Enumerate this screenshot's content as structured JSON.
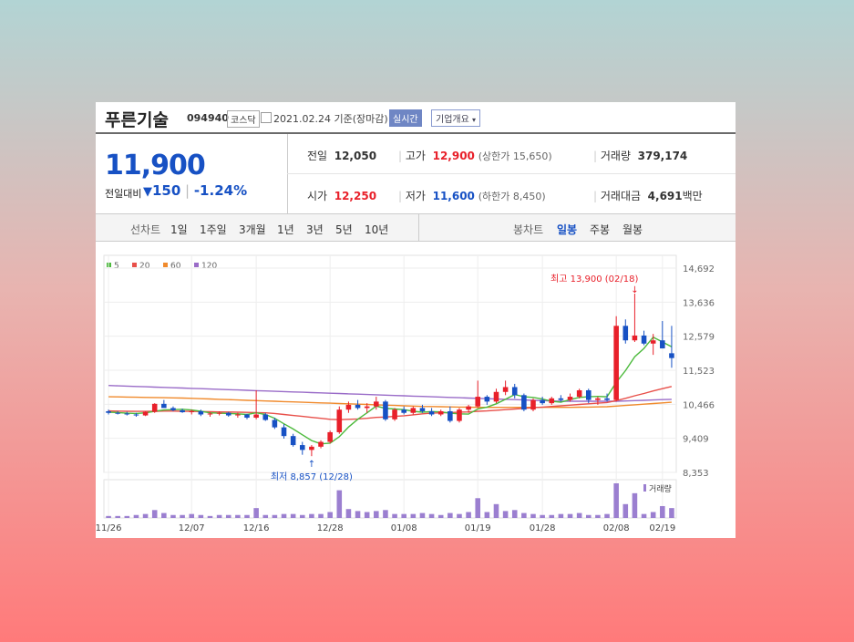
{
  "stock": {
    "name": "푸른기술",
    "code": "094940",
    "market": "코스닥",
    "date": "2021.02.24 기준(장마감)",
    "realtime_label": "실시간",
    "company_info_label": "기업개요",
    "current_price": "11,900",
    "change_label": "전일대비",
    "change_value": "150",
    "change_percent": "-1.24%"
  },
  "summary": {
    "prev_label": "전일",
    "prev_value": "12,050",
    "high_label": "고가",
    "high_value": "12,900",
    "upper_limit": "(상한가 15,650)",
    "volume_label": "거래량",
    "volume_value": "379,174",
    "open_label": "시가",
    "open_value": "12,250",
    "low_label": "저가",
    "low_value": "11,600",
    "lower_limit": "(하한가 8,450)",
    "amount_label": "거래대금",
    "amount_value": "4,691",
    "amount_unit": "백만"
  },
  "toolbar": {
    "line_chart_label": "선차트",
    "periods": [
      "1일",
      "1주일",
      "3개월",
      "1년",
      "3년",
      "5년",
      "10년"
    ],
    "candle_label": "봉차트",
    "candle_periods": [
      "일봉",
      "주봉",
      "월봉"
    ],
    "selected_candle": "일봉"
  },
  "colors": {
    "up": "#e8202a",
    "down": "#1751c4",
    "ma5": "#4cba3c",
    "ma20": "#e8504a",
    "ma60": "#f08a2c",
    "ma120": "#9a6cc8",
    "volume": "#9b7fd0"
  },
  "chart_data": {
    "type": "candlestick",
    "legend": [
      "5",
      "20",
      "60",
      "120"
    ],
    "y_ticks": [
      "14,692",
      "13,636",
      "12,579",
      "11,523",
      "10,466",
      "9,409",
      "8,353"
    ],
    "ylim": [
      8353,
      14692
    ],
    "x_ticks": [
      "11/26",
      "12/07",
      "12/16",
      "12/28",
      "01/08",
      "01/19",
      "01/28",
      "02/08",
      "02/19"
    ],
    "max_annotation": "최고 13,900 (02/18)",
    "min_annotation": "최저 8,857 (12/28)",
    "volume_label": "거래량",
    "candles": [
      [
        10250,
        10300,
        10150,
        10200
      ],
      [
        10200,
        10250,
        10150,
        10180
      ],
      [
        10180,
        10230,
        10120,
        10150
      ],
      [
        10150,
        10200,
        10080,
        10120
      ],
      [
        10120,
        10250,
        10100,
        10230
      ],
      [
        10230,
        10500,
        10200,
        10480
      ],
      [
        10480,
        10600,
        10400,
        10350
      ],
      [
        10350,
        10400,
        10250,
        10280
      ],
      [
        10280,
        10330,
        10200,
        10220
      ],
      [
        10220,
        10300,
        10150,
        10250
      ],
      [
        10250,
        10300,
        10100,
        10150
      ],
      [
        10150,
        10220,
        10080,
        10180
      ],
      [
        10180,
        10250,
        10120,
        10200
      ],
      [
        10200,
        10230,
        10080,
        10120
      ],
      [
        10120,
        10200,
        10050,
        10150
      ],
      [
        10150,
        10170,
        10000,
        10050
      ],
      [
        10050,
        10900,
        10000,
        10150
      ],
      [
        10150,
        10200,
        9950,
        9980
      ],
      [
        9980,
        10050,
        9700,
        9750
      ],
      [
        9750,
        9850,
        9400,
        9480
      ],
      [
        9480,
        9550,
        9150,
        9200
      ],
      [
        9200,
        9300,
        8900,
        9050
      ],
      [
        9050,
        9200,
        8857,
        9150
      ],
      [
        9150,
        9350,
        9100,
        9300
      ],
      [
        9300,
        9650,
        9250,
        9600
      ],
      [
        9600,
        10400,
        9550,
        10300
      ],
      [
        10300,
        10550,
        10200,
        10450
      ],
      [
        10450,
        10600,
        10300,
        10350
      ],
      [
        10350,
        10500,
        10200,
        10400
      ],
      [
        10400,
        10700,
        10300,
        10550
      ],
      [
        10550,
        10600,
        9950,
        10000
      ],
      [
        10000,
        10350,
        9950,
        10300
      ],
      [
        10300,
        10400,
        10150,
        10200
      ],
      [
        10200,
        10400,
        10150,
        10350
      ],
      [
        10350,
        10450,
        10200,
        10250
      ],
      [
        10250,
        10350,
        10100,
        10150
      ],
      [
        10150,
        10300,
        10100,
        10250
      ],
      [
        10250,
        10400,
        9900,
        9950
      ],
      [
        9950,
        10350,
        9900,
        10300
      ],
      [
        10300,
        10450,
        10200,
        10400
      ],
      [
        10400,
        11200,
        10350,
        10700
      ],
      [
        10700,
        10750,
        10450,
        10550
      ],
      [
        10550,
        10950,
        10500,
        10850
      ],
      [
        10850,
        11200,
        10750,
        11000
      ],
      [
        11000,
        11100,
        10650,
        10750
      ],
      [
        10750,
        10800,
        10250,
        10300
      ],
      [
        10300,
        10650,
        10250,
        10600
      ],
      [
        10600,
        10700,
        10450,
        10500
      ],
      [
        10500,
        10700,
        10450,
        10650
      ],
      [
        10650,
        10750,
        10550,
        10600
      ],
      [
        10600,
        10800,
        10550,
        10700
      ],
      [
        10700,
        10950,
        10650,
        10900
      ],
      [
        10900,
        10950,
        10500,
        10600
      ],
      [
        10600,
        10700,
        10450,
        10650
      ],
      [
        10650,
        10800,
        10550,
        10600
      ],
      [
        10600,
        13200,
        10550,
        12900
      ],
      [
        12900,
        13100,
        12350,
        12450
      ],
      [
        12450,
        13900,
        12400,
        12600
      ],
      [
        12600,
        12750,
        12300,
        12350
      ],
      [
        12350,
        12650,
        12000,
        12450
      ],
      [
        12450,
        13050,
        12200,
        12200
      ],
      [
        12050,
        12900,
        11600,
        11900
      ]
    ],
    "volumes": [
      2,
      2,
      2,
      3,
      4,
      8,
      5,
      3,
      3,
      4,
      3,
      2,
      3,
      3,
      3,
      3,
      10,
      3,
      3,
      4,
      4,
      3,
      4,
      4,
      6,
      28,
      9,
      7,
      6,
      7,
      8,
      4,
      4,
      4,
      5,
      4,
      3,
      5,
      4,
      6,
      20,
      6,
      14,
      7,
      8,
      5,
      4,
      3,
      3,
      4,
      4,
      5,
      3,
      3,
      4,
      35,
      14,
      25,
      4,
      6,
      12,
      10
    ],
    "ma5": [
      10220,
      10210,
      10190,
      10180,
      10200,
      10250,
      10290,
      10300,
      10310,
      10290,
      10250,
      10200,
      10190,
      10180,
      10170,
      10150,
      10200,
      10150,
      10030,
      9860,
      9700,
      9520,
      9340,
      9240,
      9260,
      9460,
      9760,
      10000,
      10200,
      10410,
      10340,
      10320,
      10300,
      10250,
      10220,
      10240,
      10230,
      10190,
      10170,
      10160,
      10320,
      10380,
      10480,
      10620,
      10770,
      10700,
      10680,
      10630,
      10560,
      10530,
      10610,
      10680,
      10700,
      10710,
      10700,
      11150,
      11510,
      11940,
      12200,
      12550,
      12400,
      12250
    ],
    "ma20": [
      10260,
      10255,
      10250,
      10245,
      10245,
      10250,
      10255,
      10255,
      10250,
      10245,
      10240,
      10235,
      10230,
      10225,
      10220,
      10215,
      10210,
      10200,
      10180,
      10150,
      10120,
      10090,
      10060,
      10030,
      10000,
      9990,
      10000,
      10010,
      10030,
      10060,
      10070,
      10090,
      10110,
      10140,
      10170,
      10190,
      10200,
      10210,
      10220,
      10230,
      10250,
      10260,
      10280,
      10300,
      10320,
      10340,
      10360,
      10380,
      10400,
      10420,
      10440,
      10460,
      10480,
      10500,
      10520,
      10580,
      10650,
      10730,
      10800,
      10880,
      10950,
      11020
    ],
    "ma60": [
      10700,
      10695,
      10690,
      10685,
      10680,
      10675,
      10670,
      10665,
      10660,
      10650,
      10640,
      10630,
      10620,
      10610,
      10600,
      10590,
      10580,
      10570,
      10560,
      10550,
      10540,
      10530,
      10520,
      10510,
      10500,
      10490,
      10480,
      10470,
      10460,
      10450,
      10440,
      10430,
      10420,
      10410,
      10400,
      10395,
      10390,
      10385,
      10380,
      10375,
      10370,
      10370,
      10370,
      10370,
      10370,
      10370,
      10370,
      10370,
      10370,
      10370,
      10370,
      10375,
      10380,
      10385,
      10390,
      10410,
      10430,
      10450,
      10470,
      10490,
      10510,
      10530
    ],
    "ma120": [
      11050,
      11040,
      11030,
      11020,
      11010,
      11000,
      10990,
      10980,
      10970,
      10960,
      10950,
      10940,
      10930,
      10920,
      10910,
      10900,
      10890,
      10880,
      10870,
      10860,
      10850,
      10840,
      10830,
      10820,
      10810,
      10800,
      10790,
      10780,
      10770,
      10760,
      10750,
      10740,
      10730,
      10720,
      10710,
      10700,
      10690,
      10680,
      10670,
      10660,
      10650,
      10640,
      10630,
      10620,
      10610,
      10600,
      10590,
      10580,
      10570,
      10560,
      10560,
      10560,
      10560,
      10560,
      10560,
      10560,
      10570,
      10580,
      10590,
      10600,
      10610,
      10620
    ]
  }
}
